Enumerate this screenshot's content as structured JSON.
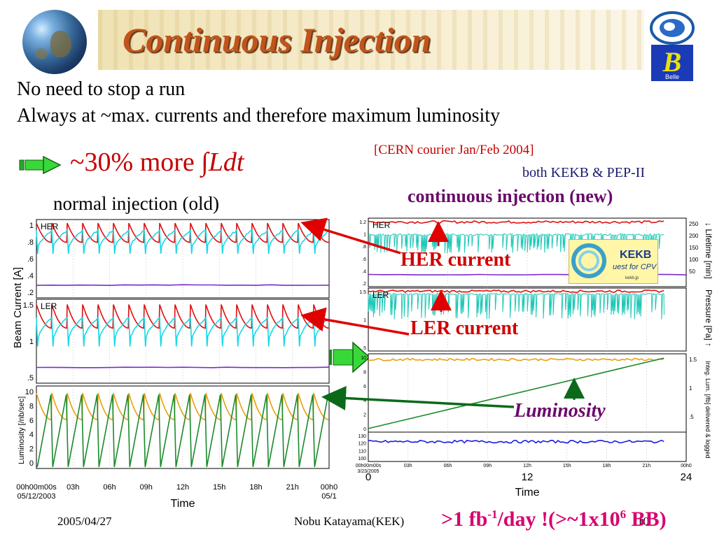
{
  "header": {
    "title": "Continuous Injection"
  },
  "logos": {
    "belle": "Belle",
    "kekb_name": "KEKB",
    "kekb_tagline": "uest for CPV",
    "kekb_url": "kekb.jp"
  },
  "body": {
    "line1": "No need to stop a run",
    "line2": "Always at ~max. currents and therefore maximum luminosity",
    "more_text": "~30% more ",
    "more_integral": "∫Ldt",
    "cern_ref": "[CERN courier Jan/Feb 2004]",
    "both": "both KEKB & PEP-II",
    "new_label": "continuous injection (new)",
    "old_label": "normal injection (old)"
  },
  "callouts": {
    "her": "HER current",
    "ler": "LER current",
    "lum": "Luminosity"
  },
  "footer": {
    "date": "2005/04/27",
    "author": "Nobu Katayama(KEK)",
    "page": "10",
    "note_prefix": ">1 fb",
    "note_sup": "-1",
    "note_mid": "/day !(>~1x10",
    "note_sup2": "6",
    "note_suffix": " BB)"
  },
  "colors": {
    "her": "#e01010",
    "cyan": "#18d8e8",
    "violet": "#7a2ad0",
    "gold": "#e8a010",
    "green": "#1a8a2a",
    "blue": "#1a1ae0",
    "teal": "#20c8b8",
    "accent_red": "#c40000"
  },
  "chart_data": [
    {
      "type": "line",
      "name_hint": "old",
      "title": "",
      "xlabel": "Time",
      "ylabel": "Beam Current [A]",
      "x_ticks": [
        "00h00m00s\n05/12/2003",
        "03h",
        "06h",
        "09h",
        "12h",
        "15h",
        "18h",
        "21h",
        "00h0\n05/1"
      ],
      "panels": [
        {
          "label": "HER",
          "y_ticks": [
            "1",
            ".8",
            ".6",
            ".4",
            ".2"
          ],
          "ylim": [
            0.1,
            1.2
          ],
          "series": [
            {
              "color_key": "her",
              "pattern": "sawtooth",
              "top": 1.15,
              "bottom": 0.88,
              "cycles": 19
            },
            {
              "color_key": "cyan",
              "pattern": "inv_sawtooth",
              "top": 1.05,
              "bottom": 0.72,
              "cycles": 19
            },
            {
              "color_key": "violet",
              "pattern": "flat",
              "level": 0.28
            }
          ]
        },
        {
          "label": "LER",
          "y_ticks": [
            "1.5",
            "1",
            ".5"
          ],
          "ylim": [
            0,
            1.6
          ],
          "series": [
            {
              "color_key": "her",
              "pattern": "sawtooth",
              "top": 1.5,
              "bottom": 1.05,
              "cycles": 19
            },
            {
              "color_key": "cyan",
              "pattern": "inv_sawtooth",
              "top": 1.25,
              "bottom": 0.7,
              "cycles": 19
            },
            {
              "color_key": "violet",
              "pattern": "flat",
              "level": 0.3
            }
          ]
        },
        {
          "label": "",
          "ylabel": "Luminosity [/nb/sec]",
          "y_ticks": [
            "10",
            "8",
            "6",
            "4",
            "2",
            "0"
          ],
          "ylim": [
            0,
            10.5
          ],
          "series": [
            {
              "color_key": "gold",
              "pattern": "sawtooth",
              "top": 9.6,
              "bottom": 6.2,
              "cycles": 19
            },
            {
              "color_key": "green",
              "pattern": "ramp",
              "top": 9.4,
              "bottom": 0.2,
              "cycles": 19
            }
          ]
        }
      ]
    },
    {
      "type": "line",
      "name_hint": "new",
      "title": "",
      "xlabel": "Time",
      "x_ticks": [
        "00h00m00s\n3/23/2005",
        "03h",
        "06h",
        "09h",
        "12h",
        "15h",
        "18h",
        "21h",
        "00h0"
      ],
      "x_ticks_large": [
        "0",
        "12",
        "24"
      ],
      "right_labels": [
        "↓ Lifetime [min]",
        "Pressure [Pa] ↑",
        "Integ. Lum. [/fb] delivered & logged"
      ],
      "panels": [
        {
          "label": "HER",
          "y_ticks_left": [
            "1.2",
            "1",
            ".8",
            ".6",
            ".4",
            ".2"
          ],
          "y_ticks_right": [
            "250",
            "200",
            "150",
            "100",
            "50"
          ],
          "ylim": [
            0,
            1.25
          ],
          "series": [
            {
              "color_key": "her",
              "pattern": "flat_noisy",
              "level": 1.18
            },
            {
              "color_key": "teal",
              "pattern": "dense",
              "top": 0.95,
              "bottom": 0.6
            },
            {
              "color_key": "violet",
              "pattern": "flat",
              "level": 0.22
            }
          ]
        },
        {
          "label": "LER",
          "y_ticks_left": [
            "1.5",
            "1",
            ".5"
          ],
          "ylim": [
            0,
            1.6
          ],
          "series": [
            {
              "color_key": "her",
              "pattern": "flat_noisy",
              "level": 1.52
            },
            {
              "color_key": "teal",
              "pattern": "dense",
              "top": 1.45,
              "bottom": 0.8
            }
          ]
        },
        {
          "label": "",
          "y_ticks_left": [
            "10",
            "8",
            "6",
            "4",
            "2",
            "0"
          ],
          "y_ticks_right": [
            "1.5",
            "1",
            ".5"
          ],
          "ylim": [
            0,
            11
          ],
          "series": [
            {
              "color_key": "gold",
              "pattern": "flat_noisy",
              "level": 10.2
            },
            {
              "color_key": "green",
              "pattern": "linear",
              "start": 0.5,
              "end": 10.4
            }
          ]
        },
        {
          "label": "",
          "y_ticks_left": [
            "130",
            "120",
            "110",
            "100"
          ],
          "ylim": [
            95,
            135
          ],
          "series": [
            {
              "color_key": "blue",
              "pattern": "flat_noisy",
              "level": 122
            }
          ]
        }
      ]
    }
  ]
}
